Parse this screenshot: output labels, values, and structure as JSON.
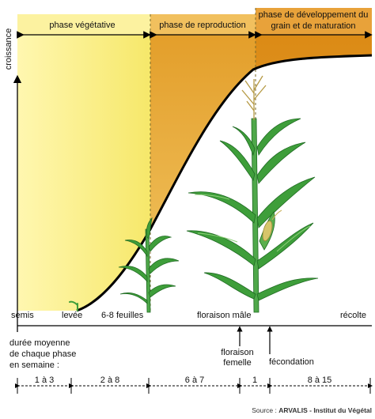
{
  "axis": {
    "y_label": "croissance"
  },
  "phases": [
    {
      "label": "phase végétative",
      "color": "#FBEF7B"
    },
    {
      "label": "phase de reproduction",
      "color": "#EDB143"
    },
    {
      "label_line1": "phase de développement du",
      "label_line2": "grain et de maturation",
      "color": "#E3941C"
    }
  ],
  "stages": {
    "semis": "semis",
    "levee": "levée",
    "feuilles": "6-8 feuilles",
    "floraison_male": "floraison mâle",
    "recolte": "récolte",
    "floraison_femelle_1": "floraison",
    "floraison_femelle_2": "femelle",
    "fecondation": "fécondation"
  },
  "duration": {
    "title_line1": "durée moyenne",
    "title_line2": "de chaque phase",
    "title_line3": "en semaine :",
    "segments": [
      "1 à 3",
      "2 à 8",
      "6 à 7",
      "1",
      "8 à 15"
    ]
  },
  "source": {
    "prefix": "Source : ",
    "brand": "ARVALIS",
    "suffix": " - Institut du Végétal"
  },
  "colors": {
    "curve": "#000000",
    "plant_green": "#3E9E3A",
    "plant_dark": "#1F6B22",
    "plant_light": "#8FD07A",
    "tassel": "#C9B15A",
    "ear": "#D7C56A"
  }
}
